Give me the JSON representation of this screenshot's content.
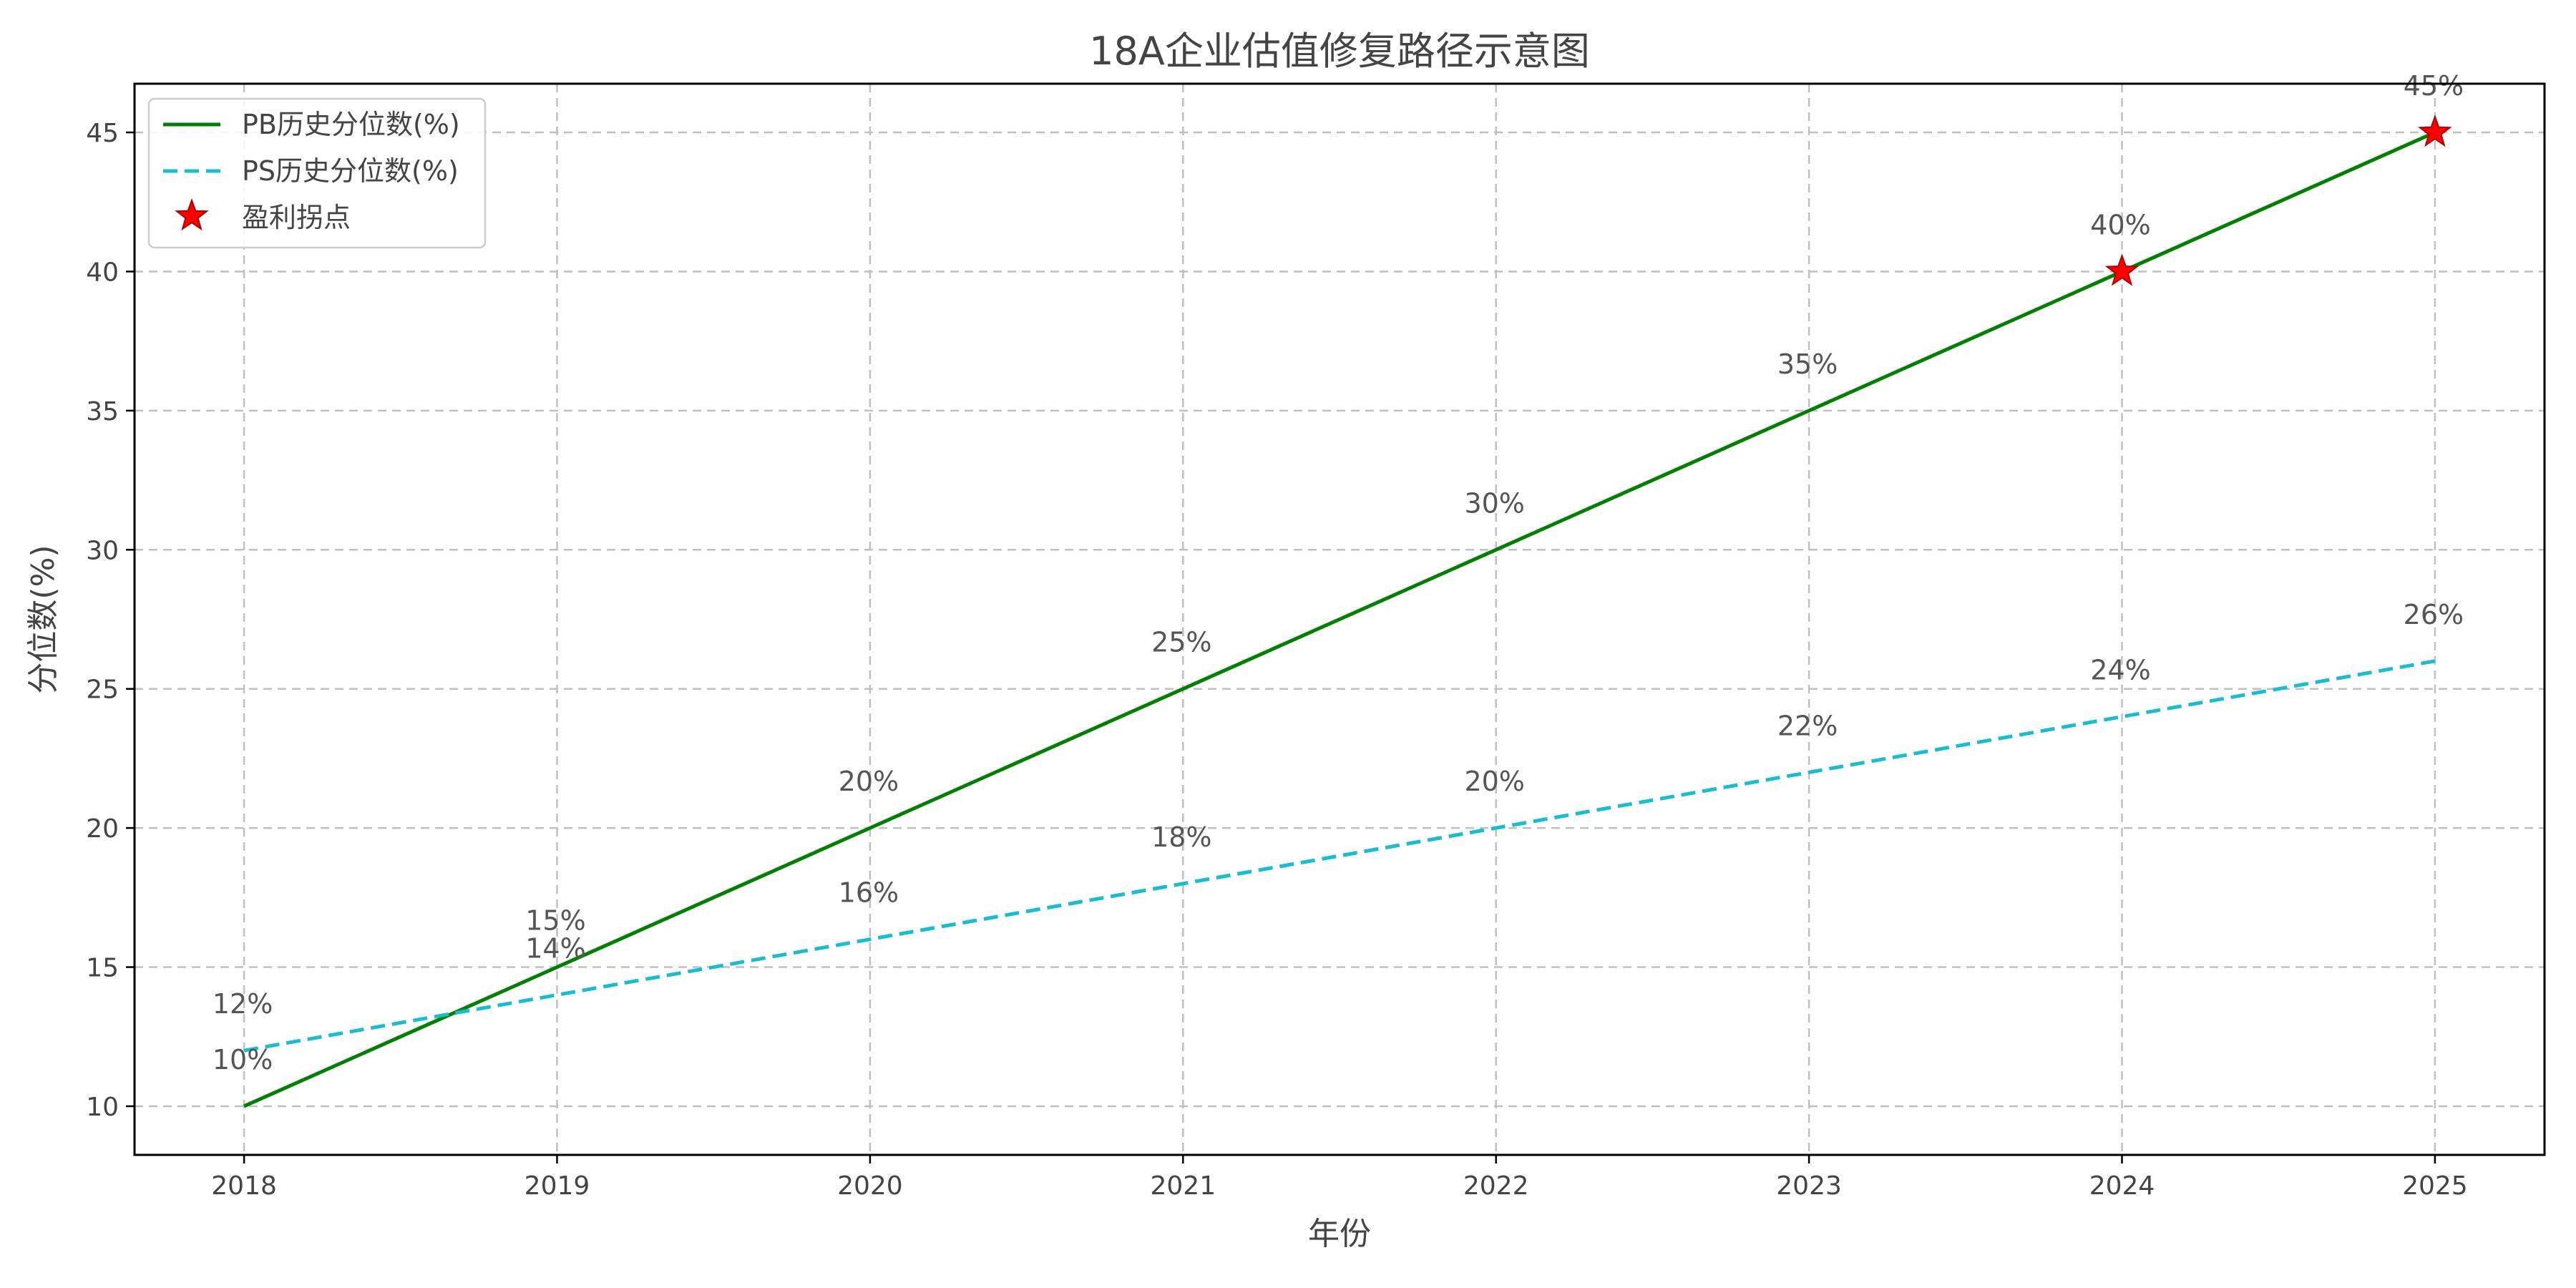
{
  "chart_data": {
    "type": "line",
    "title": "18A企业估值修复路径示意图",
    "xlabel": "年份",
    "ylabel": "分位数(%)",
    "x": [
      2018,
      2019,
      2020,
      2021,
      2022,
      2023,
      2024,
      2025
    ],
    "xlim": [
      2017.65,
      2025.35
    ],
    "ylim": [
      8.25,
      46.75
    ],
    "yticks": [
      10,
      15,
      20,
      25,
      30,
      35,
      40,
      45
    ],
    "grid": true,
    "legend_position": "top-left",
    "series": [
      {
        "name": "PB历史分位数(%)",
        "values": [
          10,
          15,
          20,
          25,
          30,
          35,
          40,
          45
        ],
        "labels": [
          "10%",
          "15%",
          "20%",
          "25%",
          "30%",
          "35%",
          "40%",
          "45%"
        ],
        "color": "#008000",
        "style": "solid"
      },
      {
        "name": "PS历史分位数(%)",
        "values": [
          12,
          14,
          16,
          18,
          20,
          22,
          24,
          26
        ],
        "labels": [
          "12%",
          "14%",
          "16%",
          "18%",
          "20%",
          "22%",
          "24%",
          "26%"
        ],
        "color": "#17BECF",
        "style": "dashed"
      }
    ],
    "markers": {
      "name": "盈利拐点",
      "x": [
        2024,
        2025
      ],
      "y": [
        40,
        45
      ],
      "color": "#FF0000",
      "shape": "star"
    }
  }
}
